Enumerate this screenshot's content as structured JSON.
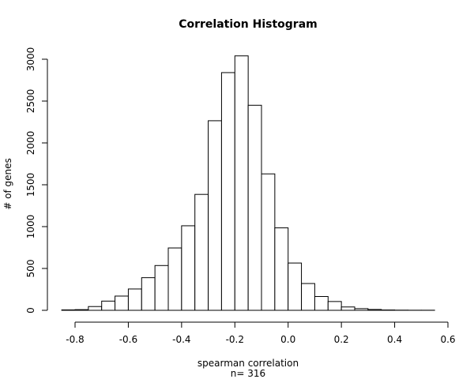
{
  "chart_data": {
    "type": "bar",
    "title": "Correlation Histogram",
    "xlabel": "spearman correlation",
    "xlabel_sub": "n= 316",
    "ylabel": "# of genes",
    "bin_width": 0.05,
    "bin_starts": [
      -0.85,
      -0.8,
      -0.75,
      -0.7,
      -0.65,
      -0.6,
      -0.55,
      -0.5,
      -0.45,
      -0.4,
      -0.35,
      -0.3,
      -0.25,
      -0.2,
      -0.15,
      -0.1,
      -0.05,
      0.0,
      0.05,
      0.1,
      0.15,
      0.2,
      0.25,
      0.3,
      0.35,
      0.4,
      0.45,
      0.5
    ],
    "values": [
      5,
      8,
      45,
      110,
      170,
      255,
      390,
      535,
      745,
      1010,
      1385,
      2265,
      2840,
      3040,
      2450,
      1630,
      985,
      565,
      320,
      165,
      105,
      40,
      20,
      10,
      4,
      2,
      1,
      1
    ],
    "xlim": [
      -0.85,
      0.6
    ],
    "ylim": [
      0,
      3050
    ],
    "x_ticks": [
      -0.8,
      -0.6,
      -0.4,
      -0.2,
      0.0,
      0.2,
      0.4,
      0.6
    ],
    "x_tick_labels": [
      "-0.8",
      "-0.6",
      "-0.4",
      "-0.2",
      "0.0",
      "0.2",
      "0.4",
      "0.6"
    ],
    "y_ticks": [
      0,
      500,
      1000,
      1500,
      2000,
      2500,
      3000
    ],
    "y_tick_labels": [
      "0",
      "500",
      "1000",
      "1500",
      "2000",
      "2500",
      "3000"
    ]
  }
}
